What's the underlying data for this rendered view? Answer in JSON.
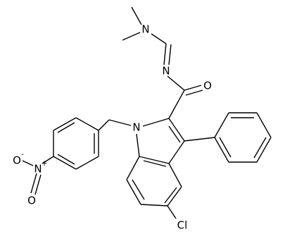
{
  "atoms": {
    "dimethylamino_n": "N",
    "imine_n": "N",
    "carbonyl_o": "O",
    "indole_n": "N",
    "chloro": "Cl",
    "nitro_n": {
      "label": "N",
      "charge": "+"
    },
    "nitro_o_minus": {
      "label": "O",
      "charge": "-"
    },
    "nitro_o": "O"
  }
}
